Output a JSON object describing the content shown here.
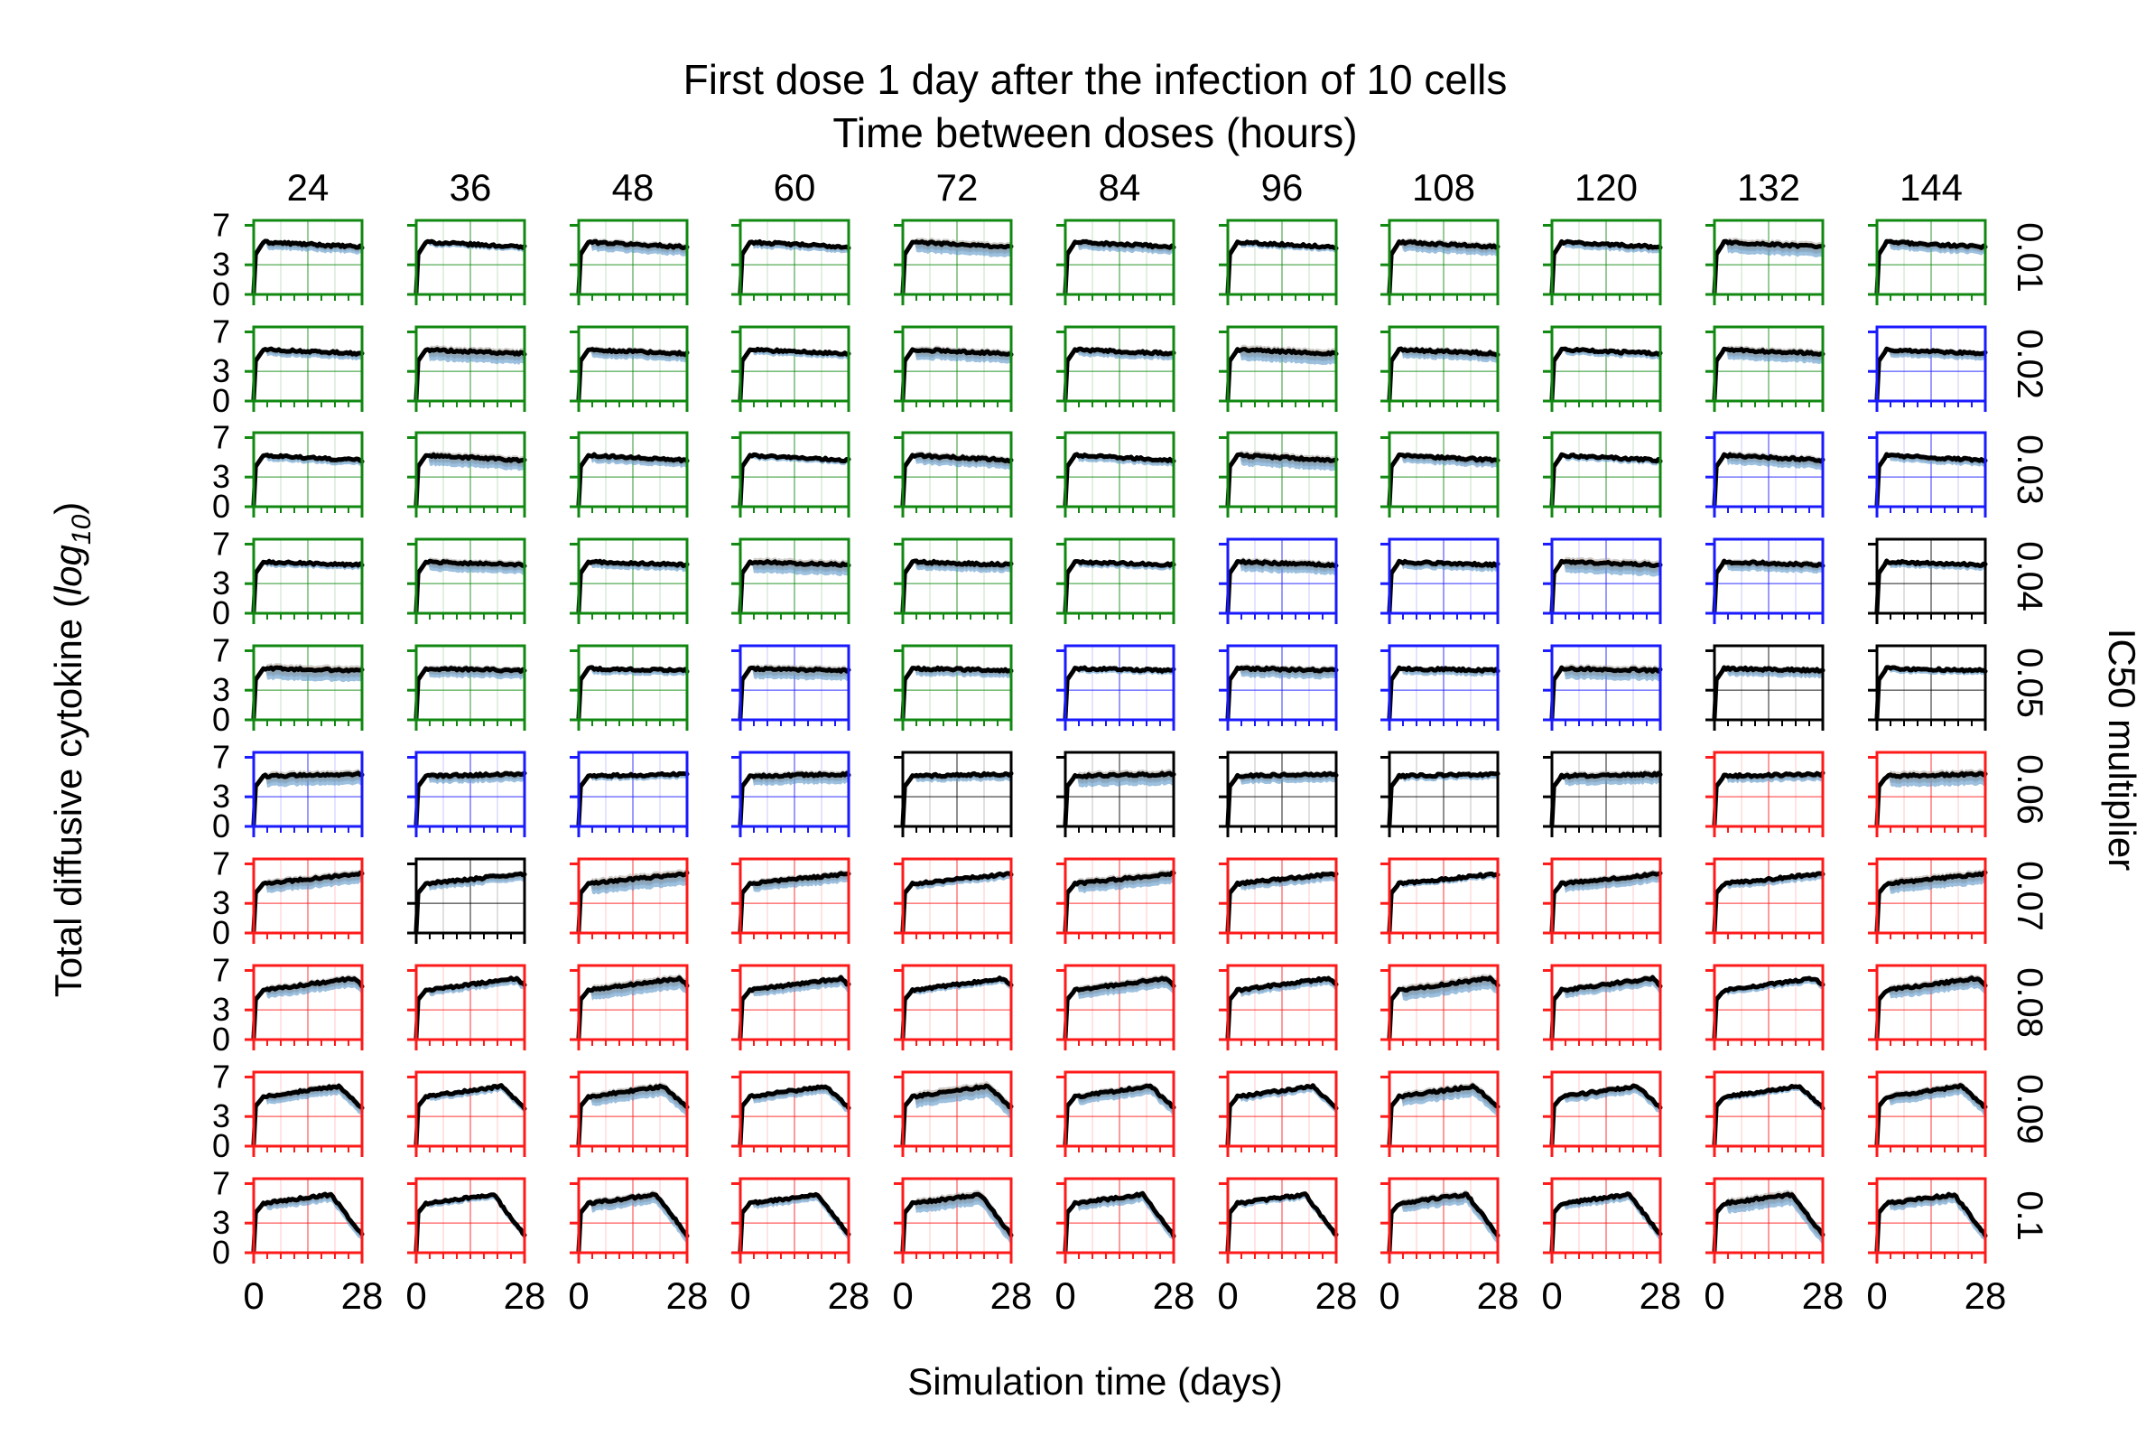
{
  "chart_data": {
    "type": "line",
    "title": "First dose 1 day after the infection of 10 cells",
    "column_group_label": "Time between doses (hours)",
    "row_group_label": "IC50 multiplier",
    "xlabel": "Simulation time (days)",
    "ylabel": "Total diffusive cytokine",
    "ylabel_suffix": "(",
    "ylabel_log": "log",
    "ylabel_base": "10",
    "ylabel_close": ")",
    "columns": [
      "24",
      "36",
      "48",
      "60",
      "72",
      "84",
      "96",
      "108",
      "120",
      "132",
      "144"
    ],
    "rows": [
      "0.01",
      "0.02",
      "0.03",
      "0.04",
      "0.05",
      "0.06",
      "0.07",
      "0.08",
      "0.09",
      "0.1"
    ],
    "xlim": [
      0,
      28
    ],
    "ylim": [
      0,
      7.5
    ],
    "xticks": [
      "0",
      "28"
    ],
    "yticks": [
      "7",
      "3",
      "0"
    ],
    "frame_colors": [
      [
        "green",
        "green",
        "green",
        "green",
        "green",
        "green",
        "green",
        "green",
        "green",
        "green",
        "green"
      ],
      [
        "green",
        "green",
        "green",
        "green",
        "green",
        "green",
        "green",
        "green",
        "green",
        "green",
        "blue"
      ],
      [
        "green",
        "green",
        "green",
        "green",
        "green",
        "green",
        "green",
        "green",
        "green",
        "blue",
        "blue"
      ],
      [
        "green",
        "green",
        "green",
        "green",
        "green",
        "green",
        "blue",
        "blue",
        "blue",
        "blue",
        "black"
      ],
      [
        "green",
        "green",
        "green",
        "blue",
        "green",
        "blue",
        "blue",
        "blue",
        "blue",
        "black",
        "black"
      ],
      [
        "blue",
        "blue",
        "blue",
        "blue",
        "black",
        "black",
        "black",
        "black",
        "black",
        "red",
        "red"
      ],
      [
        "red",
        "black",
        "red",
        "red",
        "red",
        "red",
        "red",
        "red",
        "red",
        "red",
        "red"
      ],
      [
        "red",
        "red",
        "red",
        "red",
        "red",
        "red",
        "red",
        "red",
        "red",
        "red",
        "red"
      ],
      [
        "red",
        "red",
        "red",
        "red",
        "red",
        "red",
        "red",
        "red",
        "red",
        "red",
        "red"
      ],
      [
        "red",
        "red",
        "red",
        "red",
        "red",
        "red",
        "red",
        "red",
        "red",
        "red",
        "red"
      ]
    ],
    "palette": {
      "green": "#118811",
      "blue": "#1a1aff",
      "black": "#000000",
      "red": "#ff1a1a",
      "band_blue": "#5a96c8",
      "band_orange": "#e8a868",
      "band_gray": "#a8a8a8",
      "line": "#000000"
    },
    "row_shapes": [
      {
        "peak": 5.3,
        "end": 4.8,
        "falloff_day": null,
        "end_drop": 0
      },
      {
        "peak": 5.2,
        "end": 4.8,
        "falloff_day": null,
        "end_drop": 0
      },
      {
        "peak": 5.2,
        "end": 4.7,
        "falloff_day": null,
        "end_drop": 0
      },
      {
        "peak": 5.2,
        "end": 4.9,
        "falloff_day": null,
        "end_drop": 0
      },
      {
        "peak": 5.2,
        "end": 5.0,
        "falloff_day": null,
        "end_drop": 0
      },
      {
        "peak": 5.1,
        "end": 5.3,
        "falloff_day": null,
        "end_drop": 0
      },
      {
        "peak": 5.0,
        "end": 6.0,
        "falloff_day": null,
        "end_drop": 0
      },
      {
        "peak": 5.0,
        "end": 6.3,
        "falloff_day": 26,
        "end_drop": 0.8
      },
      {
        "peak": 5.0,
        "end": 6.4,
        "falloff_day": 22,
        "end_drop": 2.5
      },
      {
        "peak": 5.0,
        "end": 6.3,
        "falloff_day": 20,
        "end_drop": 4.5
      }
    ]
  }
}
